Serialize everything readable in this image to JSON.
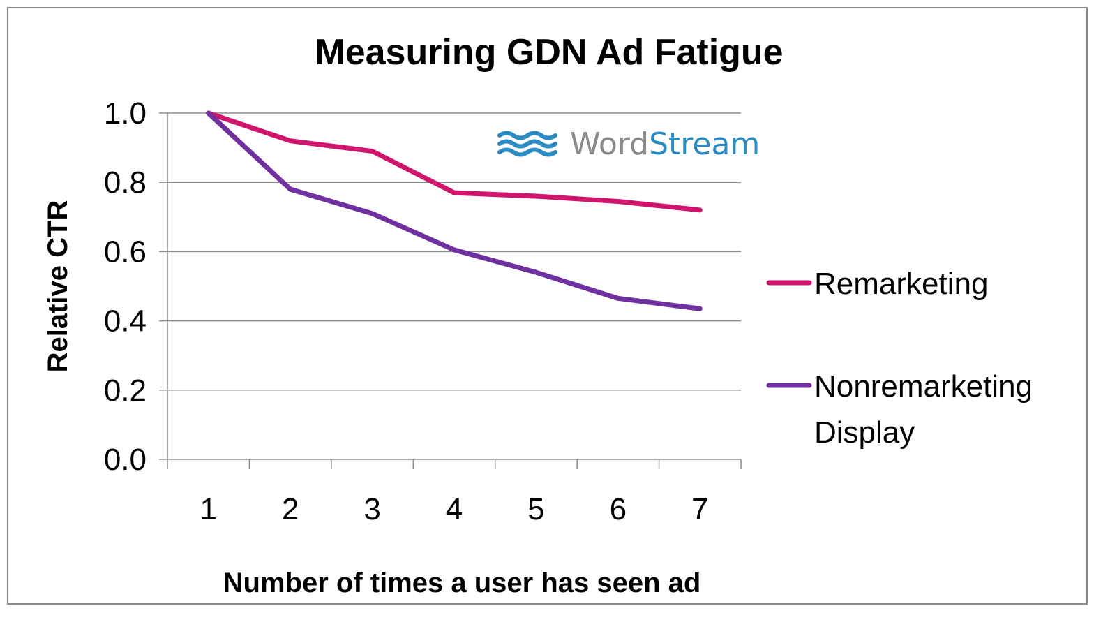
{
  "chart_data": {
    "type": "line",
    "title": "Measuring GDN Ad Fatigue",
    "xlabel": "Number of times a user has seen ad",
    "ylabel": "Relative CTR",
    "categories": [
      "1",
      "2",
      "3",
      "4",
      "5",
      "6",
      "7"
    ],
    "y_ticks": [
      "0.0",
      "0.2",
      "0.4",
      "0.6",
      "0.8",
      "1.0"
    ],
    "ylim": [
      0,
      1.0
    ],
    "grid": true,
    "legend_position": "right",
    "series": [
      {
        "name": "Remarketing",
        "color": "#d0166c",
        "values": [
          1.0,
          0.92,
          0.89,
          0.77,
          0.76,
          0.745,
          0.72
        ]
      },
      {
        "name": "Nonremarketing Display",
        "name_lines": [
          "Nonremarketing",
          "Display"
        ],
        "color": "#7030a0",
        "values": [
          1.0,
          0.78,
          0.71,
          0.605,
          0.54,
          0.465,
          0.435
        ]
      }
    ]
  },
  "logo": {
    "word_part1": "Word",
    "word_part2": "Stream",
    "color_gray": "#8a8a8a",
    "color_blue": "#2b8cc4",
    "icon": "wave-icon"
  }
}
